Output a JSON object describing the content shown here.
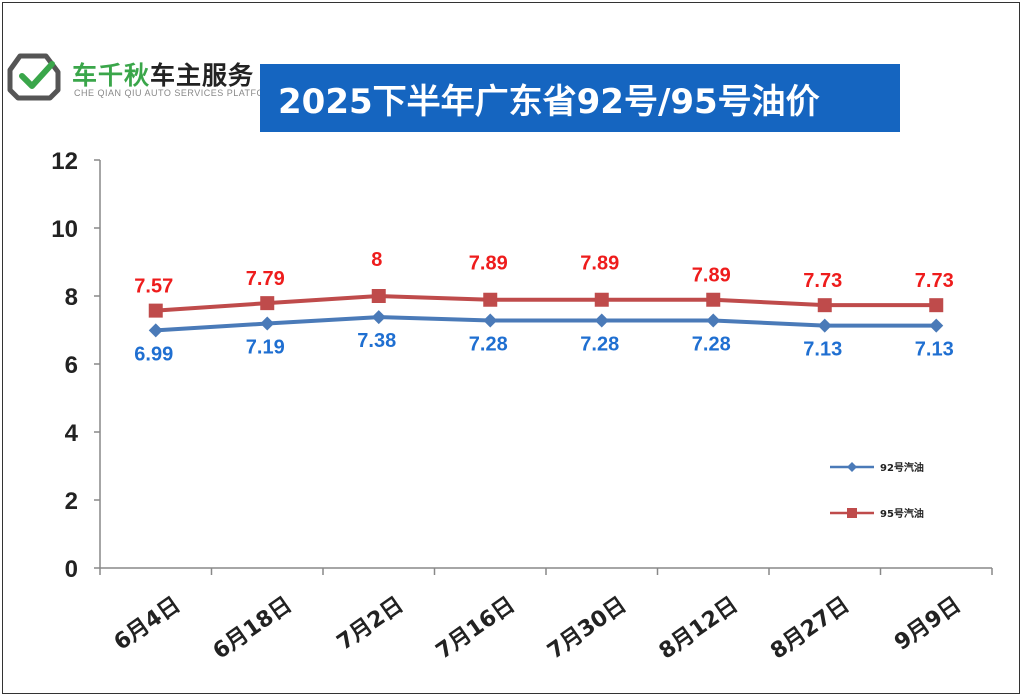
{
  "brand": {
    "name_part1": "车千秋",
    "name_part2": "车主服务",
    "subtitle": "CHE QIAN QIU AUTO SERVICES PLATFORM",
    "icon": "car-wrench-logo-icon",
    "accent": "#3aa64a"
  },
  "chart_data": {
    "type": "line",
    "title": "2025下半年广东省92号/95号油价",
    "categories": [
      "6月4日",
      "6月18日",
      "7月2日",
      "7月16日",
      "7月30日",
      "8月12日",
      "8月27日",
      "9月9日"
    ],
    "ylim": [
      0,
      12
    ],
    "yticks": [
      0,
      2,
      4,
      6,
      8,
      10,
      12
    ],
    "grid": false,
    "legend_position": "right",
    "series": [
      {
        "name": "92号汽油",
        "color": "#4a7ab8",
        "label_color": "#1f6fd1",
        "marker": "diamond",
        "values": [
          6.99,
          7.19,
          7.38,
          7.28,
          7.28,
          7.28,
          7.13,
          7.13
        ],
        "labels": [
          "6.99",
          "7.19",
          "7.38",
          "7.28",
          "7.28",
          "7.28",
          "7.13",
          "7.13"
        ]
      },
      {
        "name": "95号汽油",
        "color": "#bf4b4b",
        "label_color": "#ee1c1c",
        "marker": "square",
        "values": [
          7.57,
          7.79,
          8,
          7.89,
          7.89,
          7.89,
          7.73,
          7.73
        ],
        "labels": [
          "7.57",
          "7.79",
          "8",
          "7.89",
          "7.89",
          "7.89",
          "7.73",
          "7.73"
        ]
      }
    ]
  }
}
